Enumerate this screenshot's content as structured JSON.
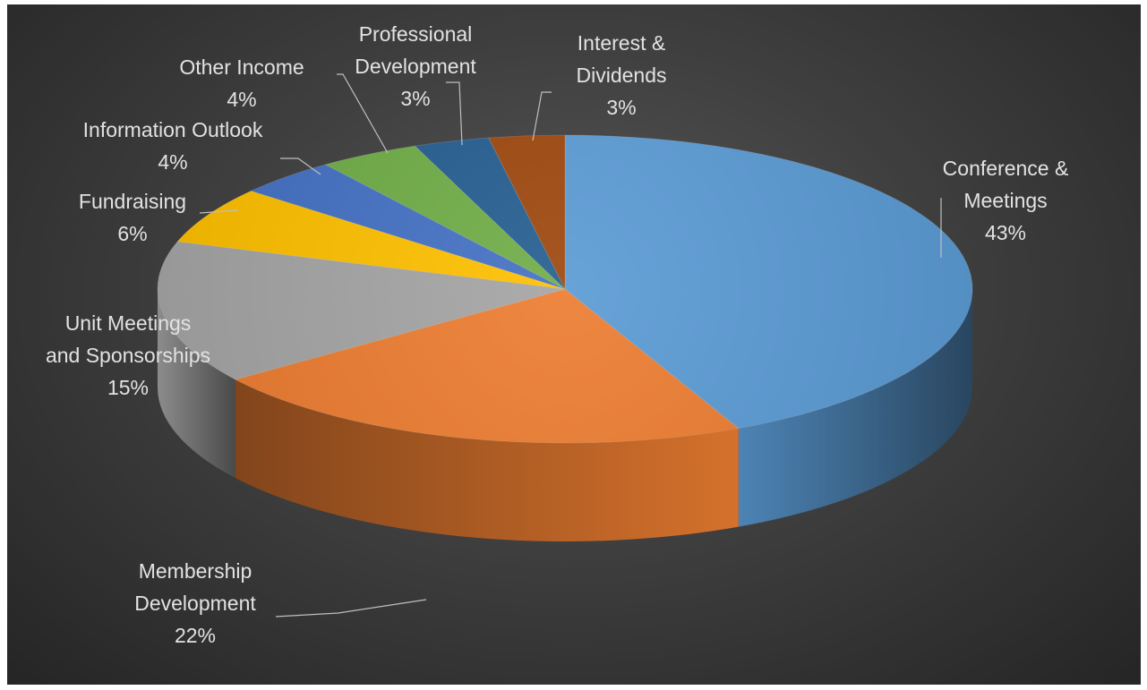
{
  "chart_data": {
    "type": "pie",
    "style": "3d",
    "title": "",
    "start_angle_deg": 0,
    "direction": "clockwise",
    "slices": [
      {
        "name": "Conference & Meetings",
        "label_lines": [
          "Conference &",
          "Meetings"
        ],
        "value": 43,
        "pct_label": "43%",
        "color": "#5b9bd5"
      },
      {
        "name": "Membership Development",
        "label_lines": [
          "Membership",
          "Development"
        ],
        "value": 22,
        "pct_label": "22%",
        "color": "#ed7d31"
      },
      {
        "name": "Unit Meetings and Sponsorships",
        "label_lines": [
          "Unit Meetings",
          "and Sponsorships"
        ],
        "value": 15,
        "pct_label": "15%",
        "color": "#a5a5a5"
      },
      {
        "name": "Fundraising",
        "label_lines": [
          "Fundraising"
        ],
        "value": 6,
        "pct_label": "6%",
        "color": "#ffc000"
      },
      {
        "name": "Information Outlook",
        "label_lines": [
          "Information Outlook"
        ],
        "value": 4,
        "pct_label": "4%",
        "color": "#4472c4"
      },
      {
        "name": "Other Income",
        "label_lines": [
          "Other Income"
        ],
        "value": 4,
        "pct_label": "4%",
        "color": "#70ad47"
      },
      {
        "name": "Professional Development",
        "label_lines": [
          "Professional",
          "Development"
        ],
        "value": 3,
        "pct_label": "3%",
        "color": "#255e91"
      },
      {
        "name": "Interest & Dividends",
        "label_lines": [
          "Interest &",
          "Dividends"
        ],
        "value": 3,
        "pct_label": "3%",
        "color": "#9e480e"
      }
    ]
  }
}
